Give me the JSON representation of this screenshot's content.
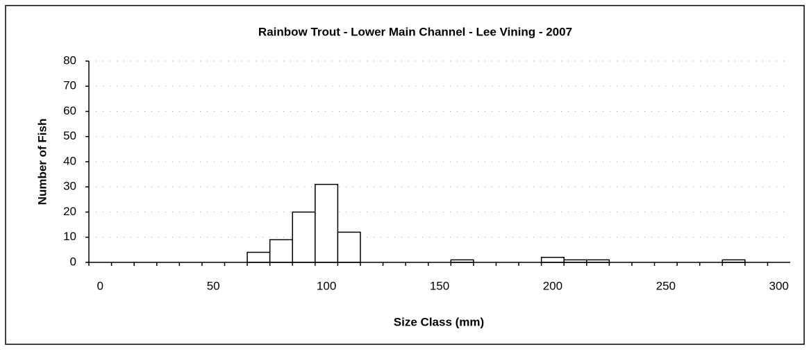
{
  "chart_data": {
    "type": "bar",
    "title": "Rainbow Trout - Lower Main Channel - Lee Vining - 2007",
    "x_label": "Size Class (mm)",
    "y_label": "Number of Fish",
    "categories": [
      "0",
      null,
      null,
      null,
      null,
      "50",
      null,
      null,
      null,
      null,
      "100",
      null,
      null,
      null,
      null,
      "150",
      null,
      null,
      null,
      null,
      "200",
      null,
      null,
      null,
      null,
      "250",
      null,
      null,
      null,
      null,
      "300"
    ],
    "values": [
      0,
      0,
      0,
      0,
      0,
      0,
      0,
      4,
      9,
      20,
      31,
      12,
      0,
      0,
      0,
      0,
      1,
      0,
      0,
      0,
      2,
      1,
      1,
      0,
      0,
      0,
      0,
      0,
      1,
      0,
      0
    ],
    "color": "#ffffff",
    "ylim": [
      0,
      80
    ],
    "yticks": [
      0,
      10,
      20,
      30,
      40,
      50,
      60,
      70,
      80
    ],
    "grid": true
  }
}
